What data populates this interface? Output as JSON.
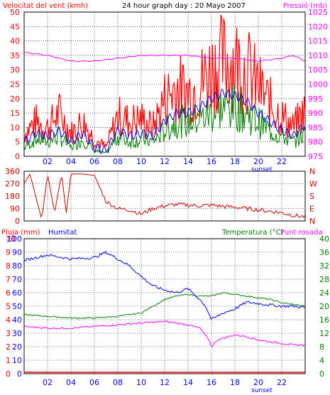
{
  "colors": {
    "wind": "#ff0000",
    "wind_dark": "#cc0000",
    "gust_fill": "#ff0000",
    "avg": "#008000",
    "pressure": "#ff00ff",
    "humidity": "#0000ff",
    "temperature": "#008000",
    "dewpoint": "#ff00ff",
    "rain": "#ff0000",
    "wind_dir": "#cc0000",
    "blue_line": "#0000ff",
    "grid": "#000000",
    "frame_bg": "#ffffff"
  },
  "chart_data": [
    {
      "type": "bar",
      "title": "24 hour graph day : 20 Mayo 2007",
      "left_label": "Velocitat del vent (kmh)",
      "right_label": "Pressió (mb)",
      "x_ticks": [
        "02",
        "04",
        "06",
        "08",
        "10",
        "12",
        "14",
        "16",
        "18",
        "20",
        "22"
      ],
      "sunset_label": "sunset",
      "ylim_left": [
        0,
        50
      ],
      "y_ticks_left": [
        0,
        5,
        10,
        15,
        20,
        25,
        30,
        35,
        40,
        45,
        50
      ],
      "ylim_right": [
        975,
        1025
      ],
      "y_ticks_right": [
        975,
        980,
        985,
        990,
        995,
        1000,
        1005,
        1010,
        1015,
        1020,
        1025
      ],
      "grid": true,
      "series": {
        "gust_hours": [
          0,
          1,
          2,
          3,
          4,
          5,
          6,
          7,
          8,
          9,
          10,
          11,
          12,
          13,
          14,
          15,
          16,
          17,
          18,
          19,
          20,
          21,
          22,
          23,
          24
        ],
        "gust_values": [
          8,
          12,
          10,
          15,
          8,
          12,
          6,
          3,
          14,
          12,
          13,
          10,
          20,
          24,
          22,
          25,
          30,
          33,
          33,
          30,
          24,
          18,
          14,
          10,
          16
        ],
        "avg_values": [
          3,
          6,
          5,
          7,
          3,
          6,
          2,
          1,
          7,
          5,
          6,
          5,
          9,
          12,
          12,
          13,
          15,
          17,
          17,
          15,
          12,
          9,
          7,
          5,
          8
        ],
        "blue_values": [
          5,
          8,
          7,
          9,
          5,
          8,
          3,
          2,
          9,
          7,
          8,
          7,
          12,
          15,
          15,
          17,
          20,
          22,
          21,
          19,
          15,
          12,
          9,
          7,
          11
        ],
        "pressure_hours": [
          0,
          2,
          4,
          6,
          8,
          10,
          12,
          14,
          16,
          18,
          20,
          22,
          23,
          24
        ],
        "pressure_values": [
          1011,
          1010,
          1008,
          1008,
          1009,
          1010,
          1010,
          1010,
          1009,
          1009,
          1008,
          1009,
          1010,
          1008
        ]
      }
    },
    {
      "type": "line",
      "right_labels": [
        "N",
        "W",
        "S",
        "E",
        "N"
      ],
      "ylim": [
        0,
        360
      ],
      "y_ticks": [
        0,
        90,
        180,
        270,
        360
      ],
      "hours": [
        0,
        0.5,
        1.5,
        2,
        2.6,
        3.2,
        3.6,
        4,
        5,
        6,
        7,
        8,
        9,
        10,
        11,
        12,
        13,
        14,
        15,
        16,
        17,
        18,
        19,
        20,
        21,
        22,
        23,
        24
      ],
      "values": [
        270,
        340,
        10,
        340,
        60,
        340,
        60,
        340,
        340,
        330,
        140,
        90,
        80,
        50,
        90,
        110,
        120,
        115,
        110,
        115,
        105,
        100,
        90,
        80,
        70,
        60,
        40,
        30
      ]
    },
    {
      "type": "line",
      "left_label_1": "Pluja (mm)",
      "left_label_2": "Humitat",
      "right_label_1": "Temperatura (°C)",
      "right_label_2": "Punt rosada",
      "x_ticks": [
        "02",
        "04",
        "06",
        "08",
        "10",
        "12",
        "14",
        "16",
        "18",
        "20",
        "22"
      ],
      "sunset_label": "sunset",
      "ylim_rain": [
        0,
        10
      ],
      "y_ticks_rain": [
        0,
        1,
        2,
        3,
        4,
        5,
        6,
        7,
        8,
        9,
        10
      ],
      "ylim_humidity": [
        0,
        100
      ],
      "y_ticks_humidity": [
        0,
        10,
        20,
        30,
        40,
        50,
        60,
        70,
        80,
        90,
        100
      ],
      "ylim_temp": [
        0,
        40
      ],
      "y_ticks_temp": [
        0,
        4,
        8,
        12,
        16,
        20,
        24,
        28,
        32,
        36,
        40
      ],
      "humidity_hours": [
        0,
        2,
        4,
        6,
        7,
        8,
        9,
        10,
        11,
        12,
        13,
        14,
        15,
        15.5,
        16,
        17,
        18,
        19,
        20,
        21,
        22,
        23,
        24
      ],
      "humidity_values": [
        84,
        88,
        85,
        86,
        90,
        85,
        80,
        72,
        65,
        62,
        60,
        63,
        55,
        50,
        40,
        45,
        48,
        53,
        52,
        51,
        50,
        50,
        49
      ],
      "temp_hours": [
        0,
        2,
        4,
        6,
        8,
        10,
        11,
        12,
        13,
        14,
        15,
        16,
        17,
        18,
        19,
        20,
        21,
        22,
        23,
        24
      ],
      "temp_values": [
        17.5,
        17,
        16.5,
        16.5,
        17,
        18,
        20,
        22,
        23,
        23.5,
        23,
        23,
        24,
        23.5,
        23,
        22.5,
        22,
        21,
        20.5,
        20
      ],
      "dew_hours": [
        0,
        2,
        4,
        6,
        8,
        10,
        12,
        13,
        14,
        15,
        15.8,
        16,
        16.5,
        17,
        18,
        19,
        20,
        21,
        22,
        23,
        24
      ],
      "dew_values": [
        14,
        13.5,
        13.5,
        14,
        14.5,
        15,
        15.5,
        15,
        14.5,
        13.5,
        10,
        8,
        10,
        10.5,
        11.5,
        11,
        10,
        9.5,
        9,
        8.5,
        8.5
      ],
      "rain_values": [
        0,
        0
      ]
    }
  ]
}
